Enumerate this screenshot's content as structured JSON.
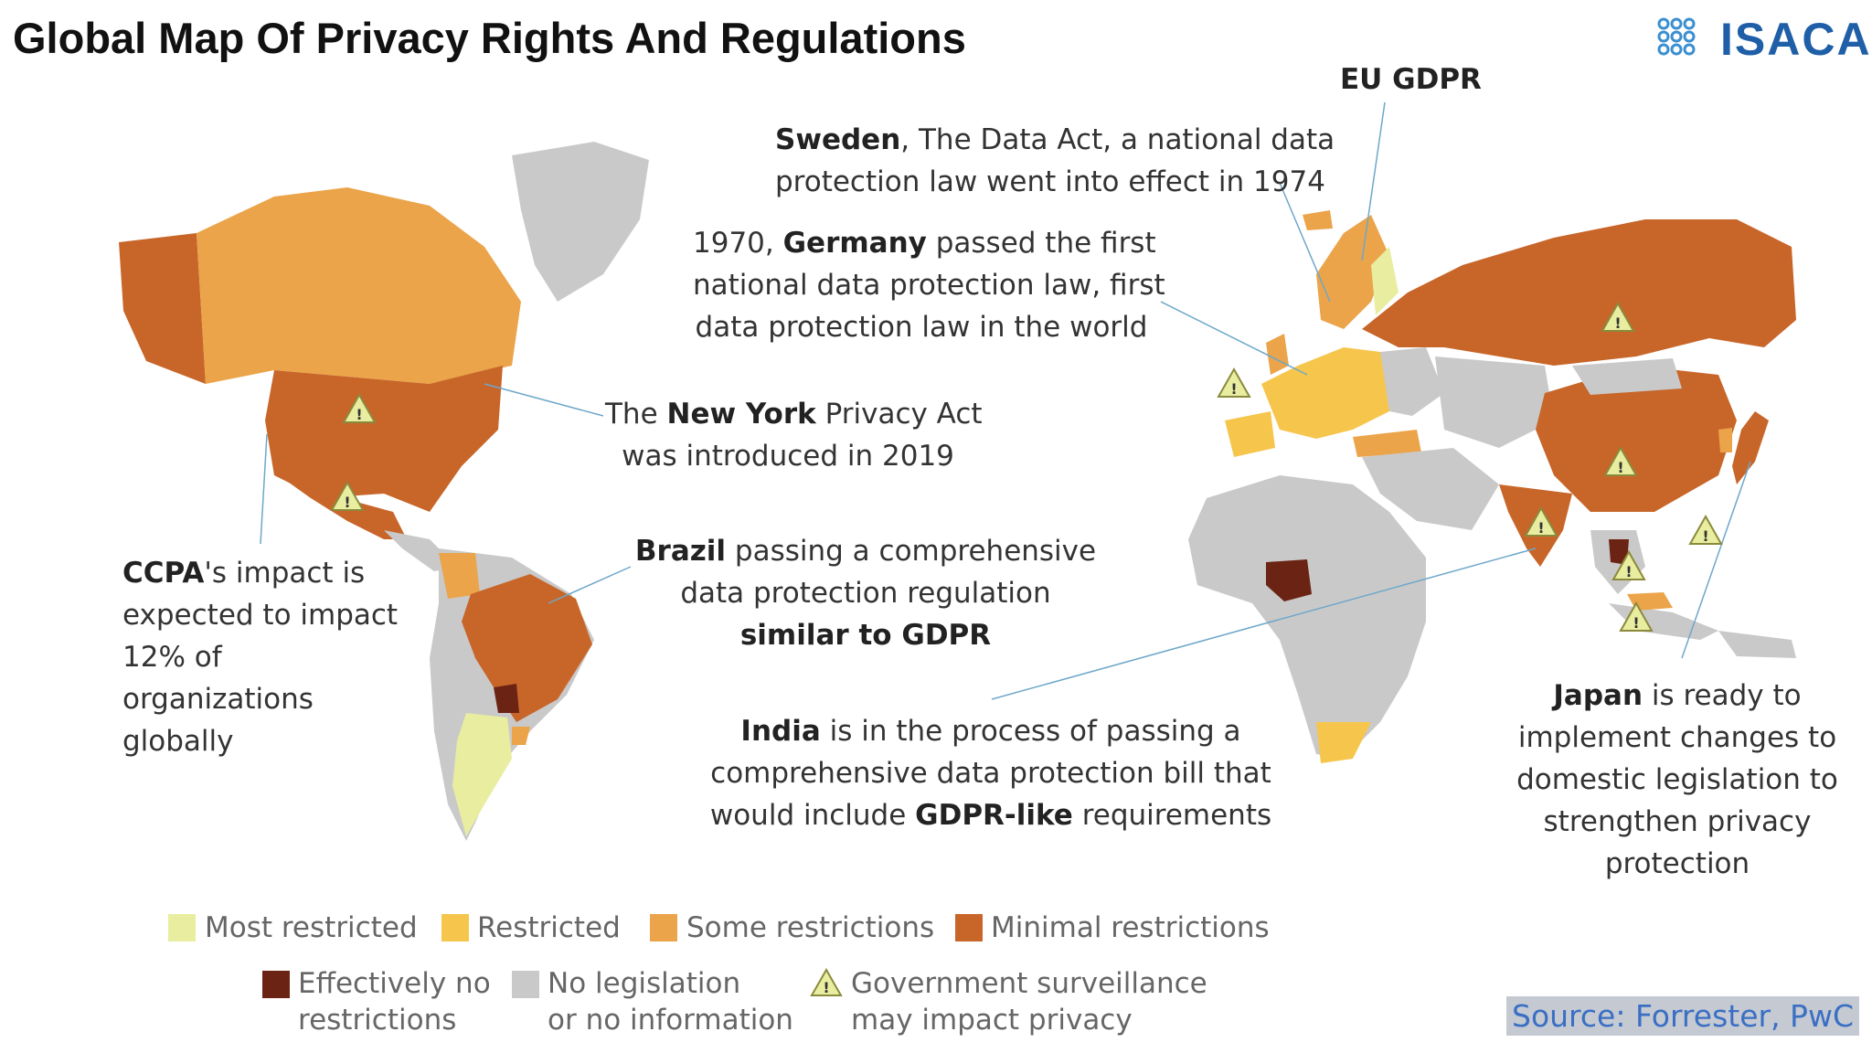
{
  "title": "Global Map Of Privacy Rights And Regulations",
  "logo": {
    "text": "ISACA",
    "mark": "isaca-logo-mark",
    "color": "#1f5fa8"
  },
  "annotations": {
    "eu_gdpr": "EU GDPR",
    "sweden_bold": "Sweden",
    "sweden_line1_rest": ", The Data Act, a national data",
    "sweden_line2": "protection law went into effect in 1974",
    "germany_pre": "1970, ",
    "germany_bold": "Germany",
    "germany_line1_rest": " passed the first",
    "germany_line2": "national data protection law, first",
    "germany_line3": "data protection law in the world",
    "ny_pre": "The ",
    "ny_bold": "New York",
    "ny_post": " Privacy Act",
    "ny_line2": "was introduced in 2019",
    "ccpa_bold": "CCPA",
    "ccpa_line1_rest": "'s impact is",
    "ccpa_line2": "expected to impact",
    "ccpa_line3": "12% of",
    "ccpa_line4": "organizations",
    "ccpa_line5": "globally",
    "brazil_bold": "Brazil",
    "brazil_line1_rest": " passing a comprehensive",
    "brazil_line2": "data protection regulation",
    "brazil_line3_bold": "similar to GDPR",
    "india_bold": "India",
    "india_line1_rest": " is in the process of passing a",
    "india_line2": "comprehensive data protection bill that",
    "india_line3_pre": "would include ",
    "india_line3_bold": "GDPR-like",
    "india_line3_post": " requirements",
    "japan_bold": "Japan",
    "japan_line1_rest": " is ready to",
    "japan_line2": "implement changes to",
    "japan_line3": "domestic legislation to",
    "japan_line4": "strengthen privacy",
    "japan_line5": "protection"
  },
  "legend": {
    "most_restricted": {
      "label": "Most restricted",
      "color": "#e8eda0"
    },
    "restricted": {
      "label": "Restricted",
      "color": "#f6c54c"
    },
    "some_restrictions": {
      "label": "Some restrictions",
      "color": "#eba44a"
    },
    "minimal_restrictions": {
      "label": "Minimal restrictions",
      "color": "#c8662a"
    },
    "effectively_no_line1": "Effectively no",
    "effectively_no_line2": "restrictions",
    "effectively_no_color": "#6b2414",
    "no_legislation_line1": "No legislation",
    "no_legislation_line2": "or no information",
    "no_legislation_color": "#c9c9c9",
    "surveillance_line1": "Government surveillance",
    "surveillance_line2": "may impact privacy",
    "surveillance_icon": "warning-triangle-icon"
  },
  "source": "Source: Forrester, PwC"
}
